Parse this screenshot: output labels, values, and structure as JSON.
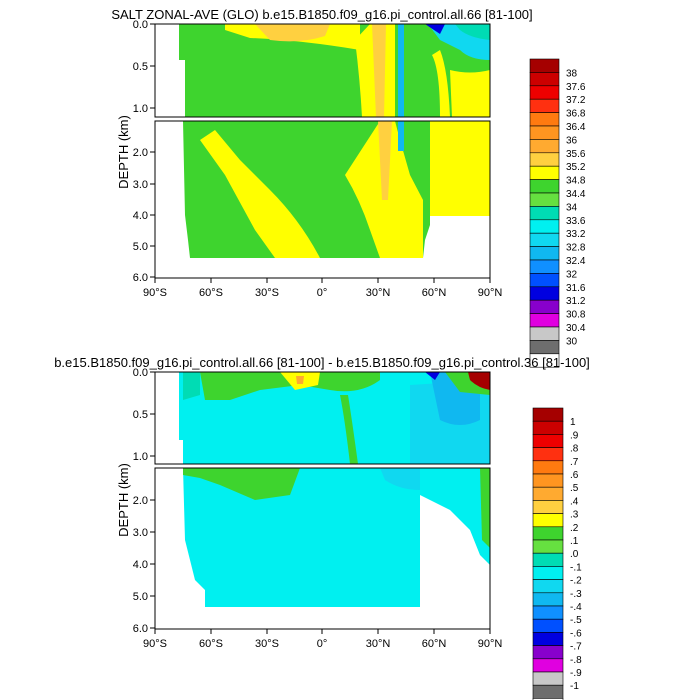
{
  "chart_data": [
    {
      "type": "heatmap",
      "title": "SALT ZONAL-AVE (GLO) b.e15.B1850.f09_g16.pi_control.all.66 [81-100]",
      "ylabel": "DEPTH (km)",
      "xlabel": "",
      "x_ticks": [
        "90°S",
        "60°S",
        "30°S",
        "0°",
        "30°N",
        "60°N",
        "90°N"
      ],
      "xlim": [
        -90,
        90
      ],
      "y_ticks_upper": [
        "0.0",
        "0.5",
        "1.0"
      ],
      "y_ticks_lower": [
        "2.0",
        "3.0",
        "4.0",
        "5.0",
        "6.0"
      ],
      "ylim_upper": [
        0.0,
        1.1
      ],
      "ylim_lower": [
        1.1,
        6.0
      ],
      "colorbar": {
        "labels": [
          "38",
          "37.6",
          "37.2",
          "36.8",
          "36.4",
          "36",
          "35.6",
          "35.2",
          "34.8",
          "34.4",
          "34",
          "33.6",
          "33.2",
          "32.8",
          "32.4",
          "32",
          "31.6",
          "31.2",
          "30.8",
          "30.4",
          "30"
        ],
        "colors": [
          "#a50000",
          "#cc0000",
          "#ee0000",
          "#ff3010",
          "#ff7a10",
          "#ff9520",
          "#ffaa30",
          "#ffd040",
          "#ffff00",
          "#3ed42e",
          "#66e040",
          "#00dcb4",
          "#00f0f0",
          "#10d8f0",
          "#10b8f0",
          "#1090ff",
          "#0050ff",
          "#0000e0",
          "#8800cc",
          "#e000e0",
          "#c8c8c8",
          "#6e6e6e",
          "#ffffff"
        ]
      }
    },
    {
      "type": "heatmap",
      "title": "b.e15.B1850.f09_g16.pi_control.all.66 [81-100] - b.e15.B1850.f09_g16.pi_control.36 [81-100]",
      "ylabel": "DEPTH (km)",
      "xlabel": "",
      "x_ticks": [
        "90°S",
        "60°S",
        "30°S",
        "0°",
        "30°N",
        "60°N",
        "90°N"
      ],
      "xlim": [
        -90,
        90
      ],
      "y_ticks_upper": [
        "0.0",
        "0.5",
        "1.0"
      ],
      "y_ticks_lower": [
        "2.0",
        "3.0",
        "4.0",
        "5.0",
        "6.0"
      ],
      "ylim_upper": [
        0.0,
        1.1
      ],
      "ylim_lower": [
        1.1,
        6.0
      ],
      "colorbar": {
        "labels": [
          "1",
          ".9",
          ".8",
          ".7",
          ".6",
          ".5",
          ".4",
          ".3",
          ".2",
          ".1",
          ".0",
          "-.1",
          "-.2",
          "-.3",
          "-.4",
          "-.5",
          "-.6",
          "-.7",
          "-.8",
          "-.9",
          "-1"
        ],
        "colors": [
          "#a50000",
          "#cc0000",
          "#ee0000",
          "#ff3010",
          "#ff7a10",
          "#ff9520",
          "#ffaa30",
          "#ffd040",
          "#ffff00",
          "#3ed42e",
          "#66e040",
          "#00dcb4",
          "#00f0f0",
          "#10d8f0",
          "#10b8f0",
          "#1090ff",
          "#0050ff",
          "#0000e0",
          "#8800cc",
          "#e000e0",
          "#c8c8c8",
          "#6e6e6e",
          "#ffffff"
        ]
      }
    }
  ]
}
